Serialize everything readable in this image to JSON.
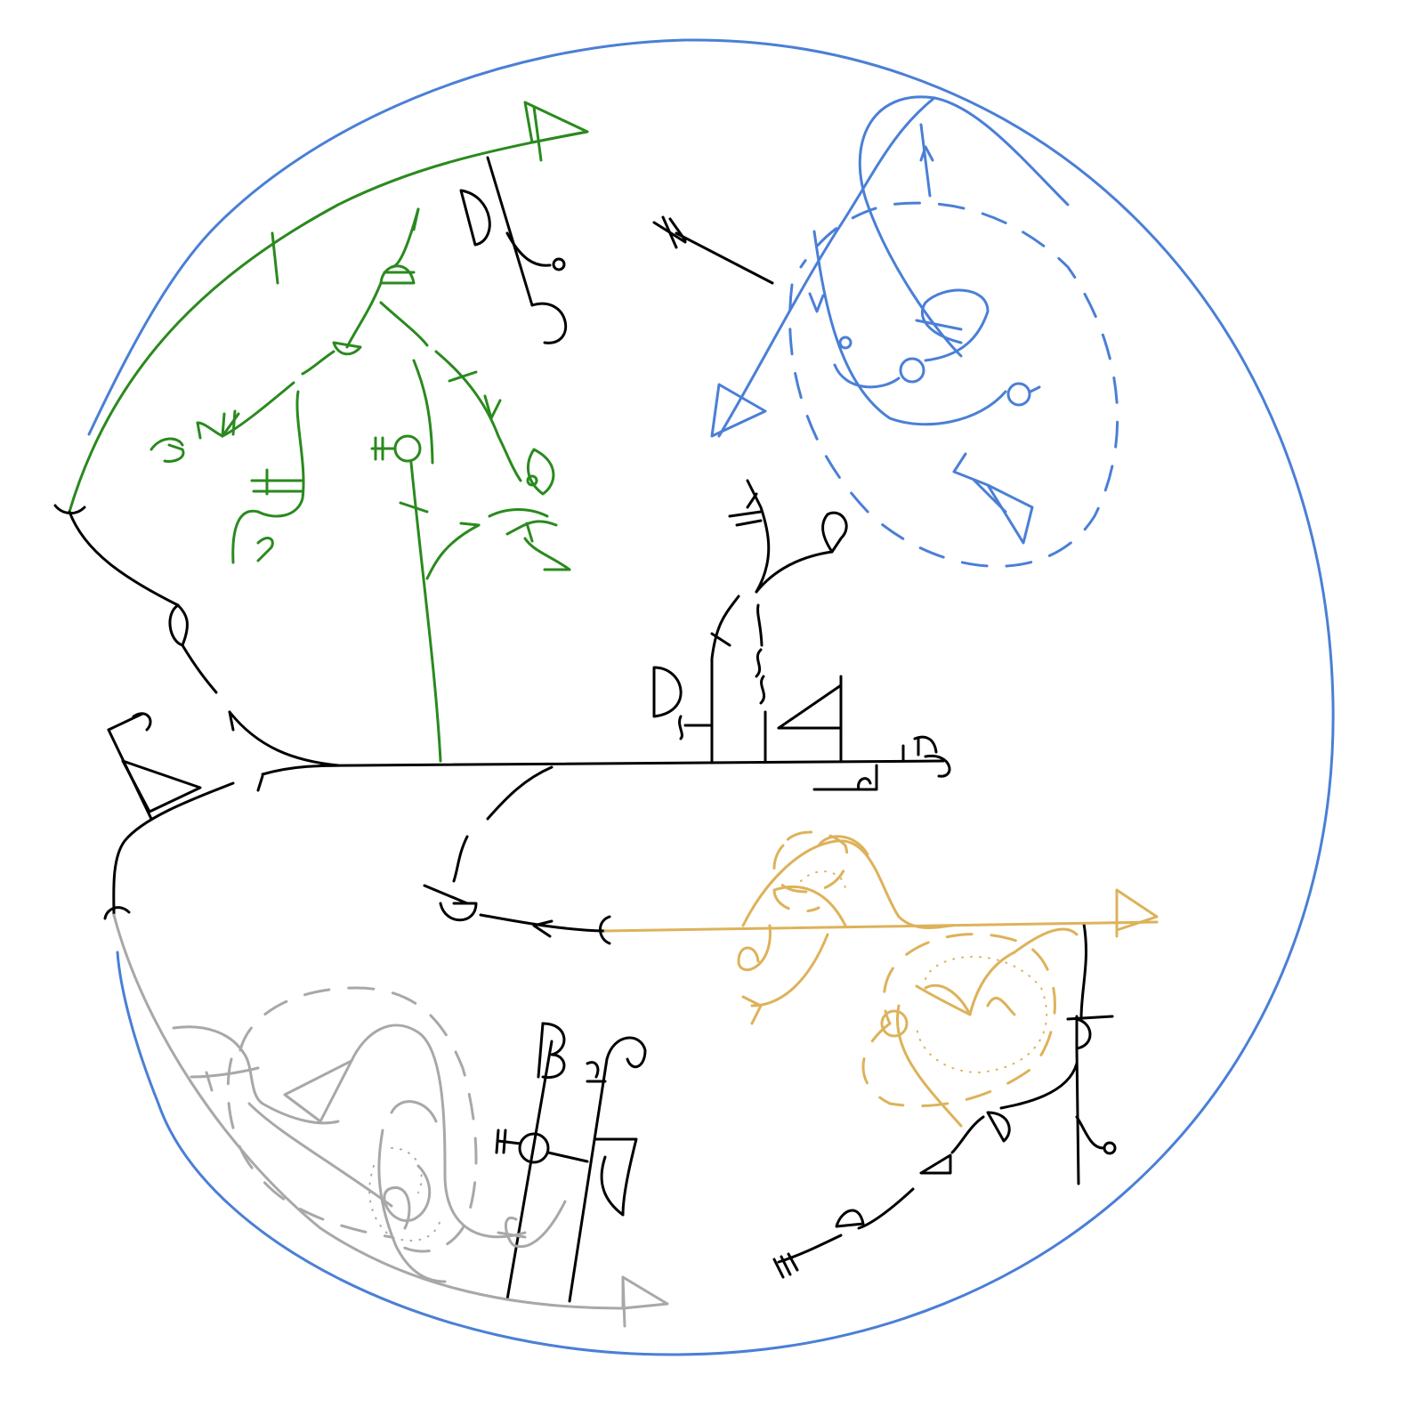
{
  "colors": {
    "boundary": "#4a7fd6",
    "trunk": "#000000",
    "green_branch": "#2a8a1e",
    "blue_branch": "#4a7fd6",
    "gold_branch": "#ddb25a",
    "gray_branch": "#a8a8a8",
    "background": "#ffffff"
  },
  "branches": [
    "boundary",
    "trunk",
    "green",
    "blue",
    "gold",
    "gray"
  ]
}
